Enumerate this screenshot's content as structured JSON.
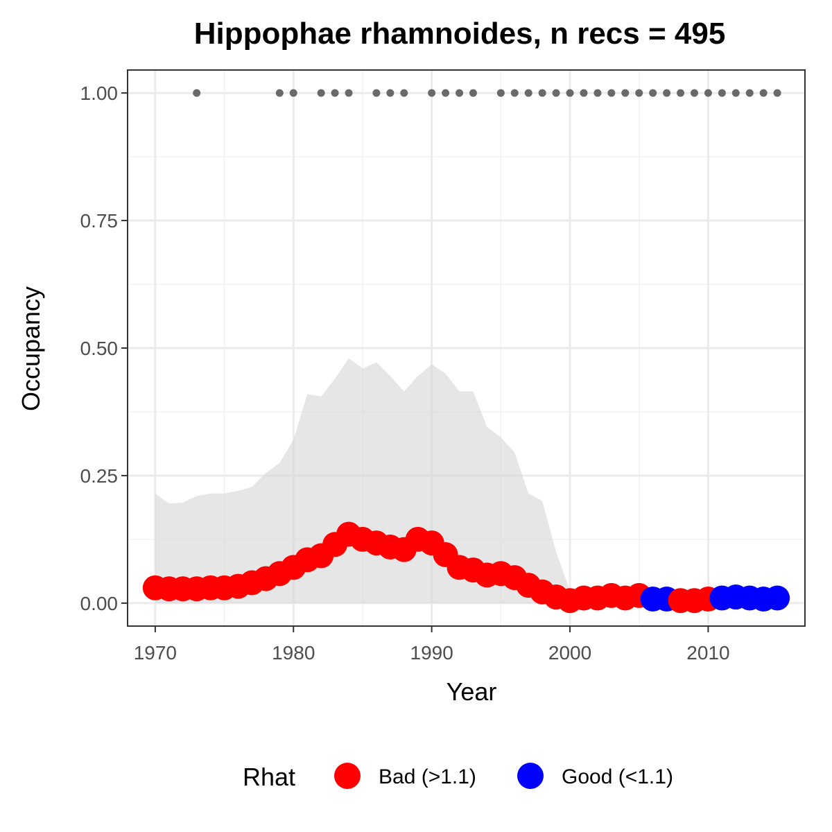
{
  "chart_data": {
    "type": "line",
    "title": "Hippophae rhamnoides, n recs = 495",
    "xlabel": "Year",
    "ylabel": "Occupancy",
    "xlim": [
      1968,
      2017
    ],
    "ylim": [
      -0.045,
      1.045
    ],
    "x_ticks": [
      1970,
      1980,
      1990,
      2000,
      2010
    ],
    "y_ticks": [
      0,
      0.25,
      0.5,
      0.75,
      1
    ],
    "y_tick_labels": [
      "0.00",
      "0.25",
      "0.50",
      "0.75",
      "1.00"
    ],
    "grid": true,
    "legend": {
      "title": "Rhat",
      "position": "bottom",
      "entries": [
        {
          "label": "Bad (>1.1)",
          "color": "#ff0000"
        },
        {
          "label": "Good (<1.1)",
          "color": "#0000ff"
        }
      ]
    },
    "colors": {
      "bad": "#ff0000",
      "good": "#0000ff",
      "ribbon": "#d6d6d6",
      "records": "#696969"
    },
    "x": [
      1970,
      1971,
      1972,
      1973,
      1974,
      1975,
      1976,
      1977,
      1978,
      1979,
      1980,
      1981,
      1982,
      1983,
      1984,
      1985,
      1986,
      1987,
      1988,
      1989,
      1990,
      1991,
      1992,
      1993,
      1994,
      1995,
      1996,
      1997,
      1998,
      1999,
      2000,
      2001,
      2002,
      2003,
      2004,
      2005,
      2006,
      2007,
      2008,
      2009,
      2010,
      2011,
      2012,
      2013,
      2014,
      2015
    ],
    "occupancy": [
      0.03,
      0.028,
      0.028,
      0.028,
      0.03,
      0.03,
      0.033,
      0.04,
      0.048,
      0.058,
      0.07,
      0.085,
      0.093,
      0.115,
      0.135,
      0.125,
      0.118,
      0.11,
      0.105,
      0.125,
      0.118,
      0.095,
      0.07,
      0.065,
      0.055,
      0.058,
      0.05,
      0.035,
      0.022,
      0.012,
      0.005,
      0.01,
      0.01,
      0.015,
      0.01,
      0.015,
      0.008,
      0.008,
      0.005,
      0.005,
      0.008,
      0.01,
      0.012,
      0.01,
      0.008,
      0.01
    ],
    "rhat": [
      "bad",
      "bad",
      "bad",
      "bad",
      "bad",
      "bad",
      "bad",
      "bad",
      "bad",
      "bad",
      "bad",
      "bad",
      "bad",
      "bad",
      "bad",
      "bad",
      "bad",
      "bad",
      "bad",
      "bad",
      "bad",
      "bad",
      "bad",
      "bad",
      "bad",
      "bad",
      "bad",
      "bad",
      "bad",
      "bad",
      "bad",
      "bad",
      "bad",
      "bad",
      "bad",
      "bad",
      "good",
      "good",
      "bad",
      "bad",
      "bad",
      "good",
      "good",
      "good",
      "good",
      "good"
    ],
    "ribbon_upper": [
      0.215,
      0.195,
      0.197,
      0.21,
      0.215,
      0.215,
      0.22,
      0.228,
      0.255,
      0.275,
      0.32,
      0.41,
      0.405,
      0.44,
      0.48,
      0.46,
      0.472,
      0.445,
      0.415,
      0.445,
      0.468,
      0.45,
      0.415,
      0.415,
      0.345,
      0.325,
      0.295,
      0.215,
      0.2,
      0.1,
      0.025,
      0.02,
      0.02,
      0.02,
      0.02,
      0.02,
      0.02,
      0.02,
      0.02,
      0.02,
      0.02,
      0.02,
      0.02,
      0.02,
      0.02,
      0.02
    ],
    "ribbon_lower": [
      0.0,
      0.0,
      0.0,
      0.0,
      0.0,
      0.0,
      0.0,
      0.0,
      0.0,
      0.0,
      0.0,
      0.0,
      0.0,
      0.0,
      0.0,
      0.0,
      0.0,
      0.0,
      0.0,
      0.0,
      0.0,
      0.0,
      0.0,
      0.0,
      0.0,
      0.0,
      0.0,
      0.0,
      0.0,
      0.0,
      0.0,
      0.0,
      0.0,
      0.0,
      0.0,
      0.0,
      0.0,
      0.0,
      0.0,
      0.0,
      0.0,
      0.0,
      0.0,
      0.0,
      0.0,
      0.0
    ],
    "record_years": [
      1973,
      1979,
      1980,
      1982,
      1983,
      1984,
      1986,
      1987,
      1988,
      1990,
      1991,
      1992,
      1993,
      1995,
      1996,
      1997,
      1998,
      1999,
      2000,
      2001,
      2002,
      2003,
      2004,
      2005,
      2006,
      2007,
      2008,
      2009,
      2010,
      2011,
      2012,
      2013,
      2014,
      2015
    ],
    "record_value": 1
  }
}
